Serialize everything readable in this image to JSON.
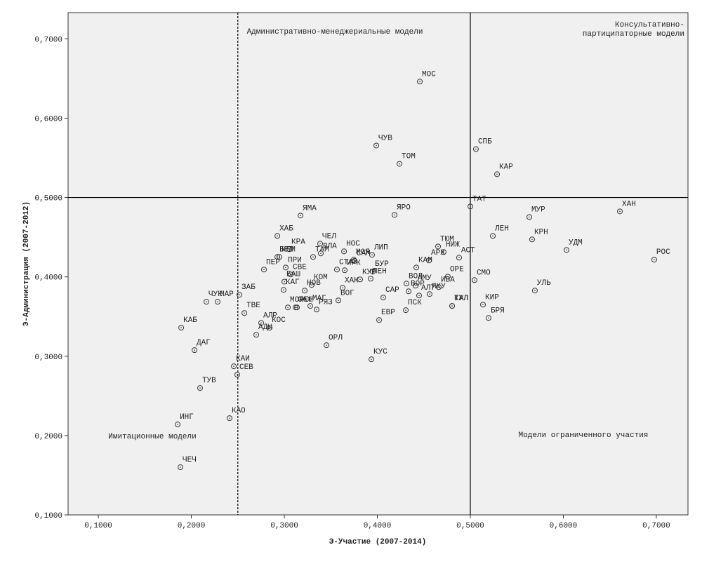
{
  "chart_data": {
    "type": "scatter",
    "x_label": "Э-Участие (2007-2014)",
    "y_label": "Э-Администрация (2007-2012)",
    "xlim": [
      0.0675,
      0.734
    ],
    "ylim": [
      0.1,
      0.733
    ],
    "xticks": [
      {
        "value": 0.1,
        "label": "0,1000"
      },
      {
        "value": 0.2,
        "label": "0,2000"
      },
      {
        "value": 0.3,
        "label": "0,3000"
      },
      {
        "value": 0.4,
        "label": "0,4000"
      },
      {
        "value": 0.5,
        "label": "0,5000"
      },
      {
        "value": 0.6,
        "label": "0,6000"
      },
      {
        "value": 0.7,
        "label": "0,7000"
      }
    ],
    "yticks": [
      {
        "value": 0.1,
        "label": "0,1000"
      },
      {
        "value": 0.2,
        "label": "0,2000"
      },
      {
        "value": 0.3,
        "label": "0,3000"
      },
      {
        "value": 0.4,
        "label": "0,4000"
      },
      {
        "value": 0.5,
        "label": "0,5000"
      },
      {
        "value": 0.6,
        "label": "0,6000"
      },
      {
        "value": 0.7,
        "label": "0,7000"
      }
    ],
    "vlines": [
      {
        "value": 0.25,
        "style": "dashed"
      },
      {
        "value": 0.5,
        "style": "solid"
      }
    ],
    "hlines": [
      0.5
    ],
    "annotations": [
      [
        "Административно-менеджериальные модели"
      ],
      [
        "Консультативно-",
        "партиципаторные модели"
      ],
      [
        "Имитационные модели"
      ],
      [
        "Модели ограниченного участия"
      ]
    ],
    "labels": [
      "МОС",
      "ЧУВ",
      "ТОМ",
      "СПБ",
      "КАР",
      "ТАТ",
      "ЯРО",
      "ХАН",
      "МУР",
      "ЯМА",
      "ХАБ",
      "ЛЕН",
      "КРН",
      "КРА",
      "ЧЕЛ",
      "ВЛА",
      "НОС",
      "ЛИП",
      "САМ",
      "КЕМ",
      "ПРИ",
      "АСТ",
      "ТЮМ",
      "НИЖ",
      "ПЕР",
      "БЕЛ",
      "ТАМ",
      "СВЕ",
      "СТА",
      "МОЯ",
      "БУР",
      "КАМ",
      "ИРК",
      "АРХ",
      "ОРЕ",
      "СМО",
      "БАШ",
      "КОМ",
      "ПЕН",
      "ВОЛ",
      "АМУ",
      "ХАК",
      "КУР",
      "НОВ",
      "КАГ",
      "ЗАБ",
      "ИВА",
      "ВОГ",
      "САР",
      "ВОР",
      "ЯКУ",
      "УЛЬ",
      "АЛТ",
      "КИР",
      "КАЛ",
      "ТУЛ",
      "ЧУК",
      "МАР",
      "ТВЕ",
      "МОР",
      "САХ",
      "МАГ",
      "НЕН",
      "РЯЗ",
      "ПСК",
      "ЕВР",
      "БРЯ",
      "КАБ",
      "АЛР",
      "КОС",
      "АДЫ",
      "ОРЛ",
      "ДАГ",
      "КУС",
      "КАИ",
      "СЕВ",
      "ТУВ",
      "КАО",
      "ИНГ",
      "ЧЕЧ",
      "УДМ",
      "РОС"
    ],
    "x": [
      0.4457,
      0.3989,
      0.4238,
      0.506,
      0.5287,
      0.5,
      0.4185,
      0.6608,
      0.5634,
      0.3174,
      0.2925,
      0.5242,
      0.5664,
      0.3053,
      0.3385,
      0.3392,
      0.3642,
      0.3943,
      0.3754,
      0.2947,
      0.3015,
      0.4879,
      0.4653,
      0.4713,
      0.2781,
      0.2925,
      0.3309,
      0.3068,
      0.3566,
      0.3747,
      0.3951,
      0.4419,
      0.3649,
      0.4555,
      0.4758,
      0.5045,
      0.3,
      0.3294,
      0.3928,
      0.4313,
      0.4411,
      0.3626,
      0.3815,
      0.3219,
      0.2992,
      0.2517,
      0.466,
      0.3581,
      0.4064,
      0.4336,
      0.4562,
      0.5694,
      0.4449,
      0.5136,
      0.4804,
      0.4804,
      0.2162,
      0.2283,
      0.257,
      0.3038,
      0.3121,
      0.3279,
      0.3136,
      0.3347,
      0.4306,
      0.4019,
      0.5196,
      0.1891,
      0.2751,
      0.2842,
      0.2698,
      0.3453,
      0.2034,
      0.3936,
      0.2457,
      0.2494,
      0.2094,
      0.2411,
      0.1853,
      0.1883,
      0.6034,
      0.6977
    ],
    "values": [
      0.6461,
      0.5655,
      0.5424,
      0.561,
      0.5293,
      0.4887,
      0.4781,
      0.4825,
      0.4754,
      0.4772,
      0.4516,
      0.4516,
      0.4472,
      0.4348,
      0.4419,
      0.4295,
      0.4322,
      0.4277,
      0.42,
      0.4251,
      0.4118,
      0.4242,
      0.4383,
      0.4313,
      0.4092,
      0.4251,
      0.4251,
      0.403,
      0.4092,
      0.4216,
      0.4066,
      0.4118,
      0.4083,
      0.4207,
      0.4003,
      0.3959,
      0.394,
      0.3898,
      0.3977,
      0.3915,
      0.3889,
      0.3862,
      0.3968,
      0.3827,
      0.3836,
      0.3774,
      0.3871,
      0.3703,
      0.3739,
      0.3818,
      0.3783,
      0.3827,
      0.3765,
      0.365,
      0.3633,
      0.3633,
      0.3686,
      0.3686,
      0.3544,
      0.3615,
      0.3615,
      0.3633,
      0.3615,
      0.3588,
      0.358,
      0.3456,
      0.3482,
      0.3359,
      0.342,
      0.3359,
      0.327,
      0.3138,
      0.3076,
      0.2961,
      0.2873,
      0.2767,
      0.2599,
      0.2219,
      0.214,
      0.1601,
      0.4339,
      0.4216
    ]
  }
}
